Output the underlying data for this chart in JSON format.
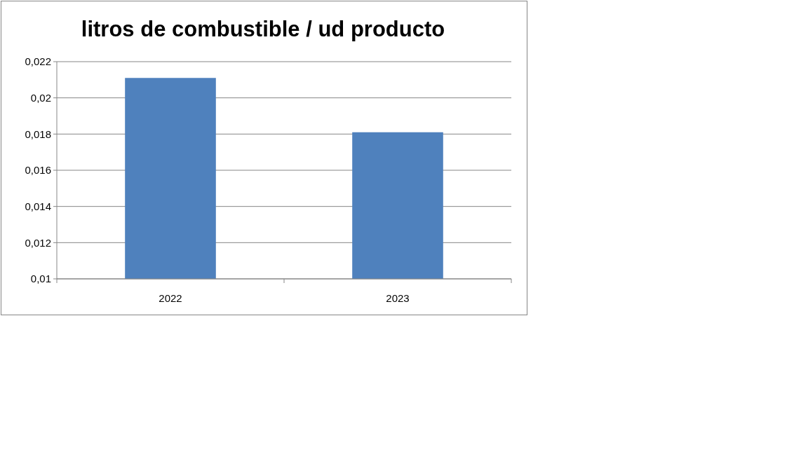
{
  "chart_data": {
    "type": "bar",
    "title": "litros de combustible / ud producto",
    "categories": [
      "2022",
      "2023"
    ],
    "values": [
      0.0211,
      0.0181
    ],
    "color": "#4f81bd",
    "ylim": [
      0.01,
      0.022
    ],
    "yticks": [
      {
        "value": 0.01,
        "label": "0,01"
      },
      {
        "value": 0.012,
        "label": "0,012"
      },
      {
        "value": 0.014,
        "label": "0,014"
      },
      {
        "value": 0.016,
        "label": "0,016"
      },
      {
        "value": 0.018,
        "label": "0,018"
      },
      {
        "value": 0.02,
        "label": "0,02"
      },
      {
        "value": 0.022,
        "label": "0,022"
      }
    ],
    "grid": "y"
  }
}
